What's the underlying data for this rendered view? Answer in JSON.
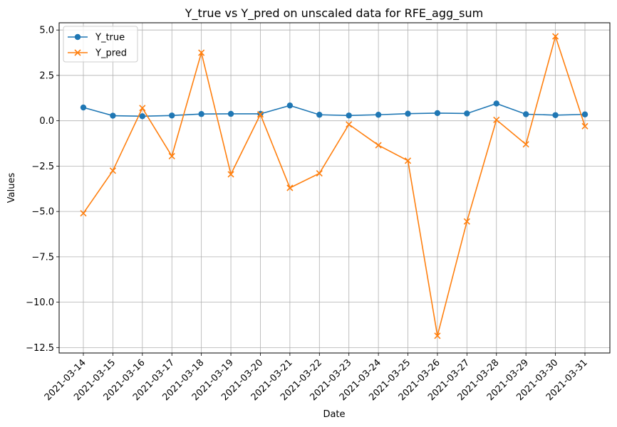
{
  "chart_data": {
    "type": "line",
    "title": "Y_true vs Y_pred on unscaled data for RFE_agg_sum",
    "xlabel": "Date",
    "ylabel": "Values",
    "ylim": [
      -12.8,
      5.4
    ],
    "yticks": [
      5.0,
      2.5,
      0.0,
      -2.5,
      -5.0,
      -7.5,
      -10.0,
      -12.5
    ],
    "ytick_labels": [
      "5.0",
      "2.5",
      "0.0",
      "−2.5",
      "−5.0",
      "−7.5",
      "−10.0",
      "−12.5"
    ],
    "grid": true,
    "legend_position": "top-left",
    "x": [
      "2021-03-14",
      "2021-03-15",
      "2021-03-16",
      "2021-03-17",
      "2021-03-18",
      "2021-03-19",
      "2021-03-20",
      "2021-03-21",
      "2021-03-22",
      "2021-03-23",
      "2021-03-24",
      "2021-03-25",
      "2021-03-26",
      "2021-03-27",
      "2021-03-28",
      "2021-03-29",
      "2021-03-30",
      "2021-03-31"
    ],
    "series": [
      {
        "name": "Y_true",
        "color": "#1f77b4",
        "marker": "circle",
        "values": [
          0.73,
          0.28,
          0.25,
          0.29,
          0.37,
          0.38,
          0.38,
          0.84,
          0.33,
          0.29,
          0.33,
          0.39,
          0.42,
          0.4,
          0.95,
          0.36,
          0.31,
          0.35
        ]
      },
      {
        "name": "Y_pred",
        "color": "#ff7f0e",
        "marker": "x",
        "values": [
          -5.1,
          -2.75,
          0.7,
          -1.95,
          3.75,
          -2.95,
          0.35,
          -3.7,
          -2.9,
          -0.2,
          -1.35,
          -2.2,
          -11.85,
          -5.55,
          0.05,
          -1.3,
          4.65,
          -0.3
        ]
      }
    ]
  }
}
